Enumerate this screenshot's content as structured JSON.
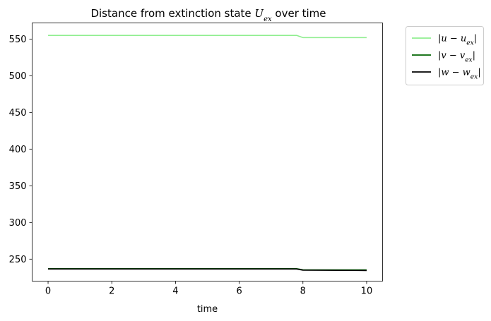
{
  "chart_data": {
    "type": "line",
    "title": "Distance from extinction state U_ex over time",
    "title_parts": {
      "prefix": "Distance from extinction state ",
      "symbol": "U",
      "subscript": "ex",
      "suffix": " over time"
    },
    "xlabel": "time",
    "ylabel": "",
    "xlim": [
      -0.5,
      10.5
    ],
    "ylim": [
      220,
      572
    ],
    "xticks": [
      0,
      2,
      4,
      6,
      8,
      10
    ],
    "yticks": [
      250,
      300,
      350,
      400,
      450,
      500,
      550
    ],
    "grid": false,
    "legend_position": "outside-right-top",
    "series": [
      {
        "name": "|u − u_ex|",
        "legend": {
          "left": "|u − u",
          "sub": "ex",
          "right": "|"
        },
        "color": "#90ee90",
        "x": [
          0,
          7.8,
          8.0,
          10
        ],
        "y": [
          555,
          555,
          552,
          552
        ]
      },
      {
        "name": "|v − v_ex|",
        "legend": {
          "left": "|v − v",
          "sub": "ex",
          "right": "|"
        },
        "color": "#006400",
        "x": [
          0,
          7.8,
          8.0,
          10
        ],
        "y": [
          237,
          237,
          235.5,
          235.3
        ]
      },
      {
        "name": "|w − w_ex|",
        "legend": {
          "left": "|w − w",
          "sub": "ex",
          "right": "|"
        },
        "color": "#000000",
        "x": [
          0,
          7.8,
          8.0,
          10
        ],
        "y": [
          236.5,
          236.5,
          235,
          234.5
        ]
      }
    ]
  }
}
